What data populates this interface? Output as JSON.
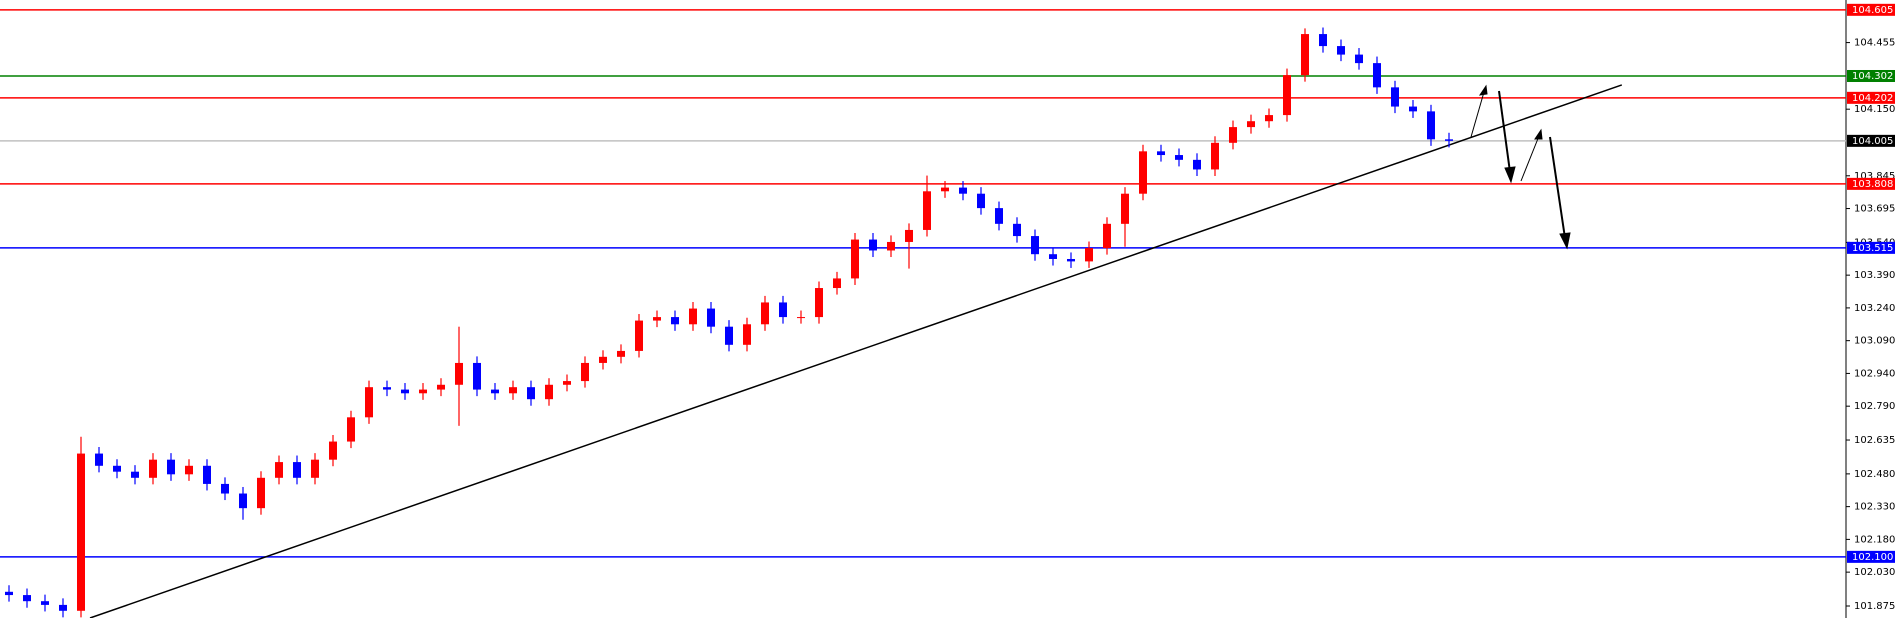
{
  "chart_data": {
    "type": "candlestick",
    "up_color": "#ff0000",
    "down_color": "#0000ff",
    "open": [
      101.94,
      101.925,
      101.897,
      101.88,
      101.853,
      102.573,
      102.517,
      102.49,
      102.462,
      102.545,
      102.478,
      102.517,
      102.434,
      102.39,
      102.323,
      102.462,
      102.534,
      102.462,
      102.545,
      102.628,
      102.739,
      102.877,
      102.866,
      102.849,
      102.866,
      102.888,
      102.988,
      102.866,
      102.849,
      102.877,
      102.822,
      102.888,
      102.905,
      102.988,
      103.016,
      103.043,
      103.182,
      103.198,
      103.165,
      103.237,
      103.154,
      103.071,
      103.165,
      103.265,
      103.198,
      103.198,
      103.331,
      103.375,
      103.553,
      103.503,
      103.542,
      103.597,
      103.774,
      103.791,
      103.763,
      103.697,
      103.625,
      103.569,
      103.486,
      103.464,
      103.453,
      103.514,
      103.625,
      103.763,
      103.957,
      103.94,
      103.918,
      103.874,
      103.996,
      104.068,
      104.095,
      104.123,
      104.306,
      104.494,
      104.439,
      104.4,
      104.361,
      104.25,
      104.162,
      104.14,
      104.012
    ],
    "high": [
      101.97,
      101.955,
      101.927,
      101.91,
      102.65,
      102.603,
      102.547,
      102.52,
      102.575,
      102.575,
      102.547,
      102.547,
      102.464,
      102.42,
      102.492,
      102.564,
      102.564,
      102.575,
      102.658,
      102.769,
      102.907,
      102.907,
      102.896,
      102.896,
      102.918,
      103.154,
      103.018,
      102.896,
      102.907,
      102.907,
      102.918,
      102.935,
      103.018,
      103.046,
      103.073,
      103.212,
      103.228,
      103.228,
      103.267,
      103.267,
      103.184,
      103.195,
      103.295,
      103.295,
      103.228,
      103.361,
      103.405,
      103.583,
      103.583,
      103.572,
      103.627,
      103.846,
      103.821,
      103.821,
      103.793,
      103.727,
      103.655,
      103.599,
      103.516,
      103.494,
      103.544,
      103.655,
      103.793,
      103.987,
      103.987,
      103.97,
      103.948,
      104.026,
      104.098,
      104.125,
      104.153,
      104.336,
      104.52,
      104.524,
      104.469,
      104.43,
      104.391,
      104.28,
      104.192,
      104.17,
      104.042
    ],
    "low": [
      101.895,
      101.867,
      101.85,
      101.823,
      101.823,
      102.487,
      102.46,
      102.432,
      102.432,
      102.448,
      102.448,
      102.404,
      102.36,
      102.27,
      102.293,
      102.432,
      102.432,
      102.432,
      102.515,
      102.598,
      102.709,
      102.836,
      102.819,
      102.819,
      102.836,
      102.7,
      102.836,
      102.819,
      102.819,
      102.792,
      102.792,
      102.858,
      102.875,
      102.958,
      102.986,
      103.013,
      103.152,
      103.135,
      103.135,
      103.124,
      103.041,
      103.041,
      103.135,
      103.168,
      103.168,
      103.168,
      103.301,
      103.345,
      103.473,
      103.473,
      103.42,
      103.567,
      103.744,
      103.733,
      103.667,
      103.595,
      103.539,
      103.456,
      103.434,
      103.423,
      103.423,
      103.484,
      103.52,
      103.733,
      103.91,
      103.888,
      103.844,
      103.844,
      103.966,
      104.038,
      104.065,
      104.093,
      104.276,
      104.409,
      104.37,
      104.331,
      104.22,
      104.132,
      104.11,
      103.982,
      103.975
    ],
    "close": [
      101.925,
      101.897,
      101.88,
      101.853,
      102.573,
      102.517,
      102.49,
      102.462,
      102.545,
      102.478,
      102.517,
      102.434,
      102.39,
      102.323,
      102.462,
      102.534,
      102.462,
      102.545,
      102.628,
      102.739,
      102.877,
      102.866,
      102.849,
      102.866,
      102.888,
      102.988,
      102.866,
      102.849,
      102.877,
      102.822,
      102.888,
      102.905,
      102.988,
      103.016,
      103.043,
      103.182,
      103.198,
      103.165,
      103.237,
      103.154,
      103.071,
      103.165,
      103.265,
      103.198,
      103.198,
      103.331,
      103.375,
      103.553,
      103.503,
      103.542,
      103.597,
      103.774,
      103.791,
      103.763,
      103.697,
      103.625,
      103.569,
      103.486,
      103.464,
      103.453,
      103.514,
      103.625,
      103.763,
      103.957,
      103.94,
      103.918,
      103.874,
      103.996,
      104.068,
      104.095,
      104.123,
      104.306,
      104.494,
      104.439,
      104.4,
      104.361,
      104.25,
      104.162,
      104.14,
      104.012,
      104.005
    ],
    "ylim": [
      101.82,
      104.65
    ],
    "yticks": [
      {
        "value": 104.455,
        "label": "104.455"
      },
      {
        "value": 104.15,
        "label": "104.150"
      },
      {
        "value": 103.845,
        "label": "103.845"
      },
      {
        "value": 103.695,
        "label": "103.695"
      },
      {
        "value": 103.54,
        "label": "103.540"
      },
      {
        "value": 103.39,
        "label": "103.390"
      },
      {
        "value": 103.24,
        "label": "103.240"
      },
      {
        "value": 103.09,
        "label": "103.090"
      },
      {
        "value": 102.94,
        "label": "102.940"
      },
      {
        "value": 102.79,
        "label": "102.790"
      },
      {
        "value": 102.635,
        "label": "102.635"
      },
      {
        "value": 102.48,
        "label": "102.480"
      },
      {
        "value": 102.33,
        "label": "102.330"
      },
      {
        "value": 102.18,
        "label": "102.180"
      },
      {
        "value": 102.03,
        "label": "102.030"
      },
      {
        "value": 101.875,
        "label": "101.875"
      }
    ],
    "levels": [
      {
        "value": 104.605,
        "label": "104.605",
        "color": "#ff0000"
      },
      {
        "value": 104.302,
        "label": "104.302",
        "color": "#008000"
      },
      {
        "value": 104.202,
        "label": "104.202",
        "color": "#ff0000"
      },
      {
        "value": 104.005,
        "label": "104.005",
        "color": "#c0c0c0"
      },
      {
        "value": 103.808,
        "label": "103.808",
        "color": "#ff0000"
      },
      {
        "value": 103.515,
        "label": "103.515",
        "color": "#0000ff"
      },
      {
        "value": 102.1,
        "label": "102.100",
        "color": "#0000ff"
      }
    ],
    "trendline": {
      "x": [
        4.5,
        89.6
      ],
      "y": [
        101.82,
        104.261
      ],
      "color": "#000000"
    }
  }
}
